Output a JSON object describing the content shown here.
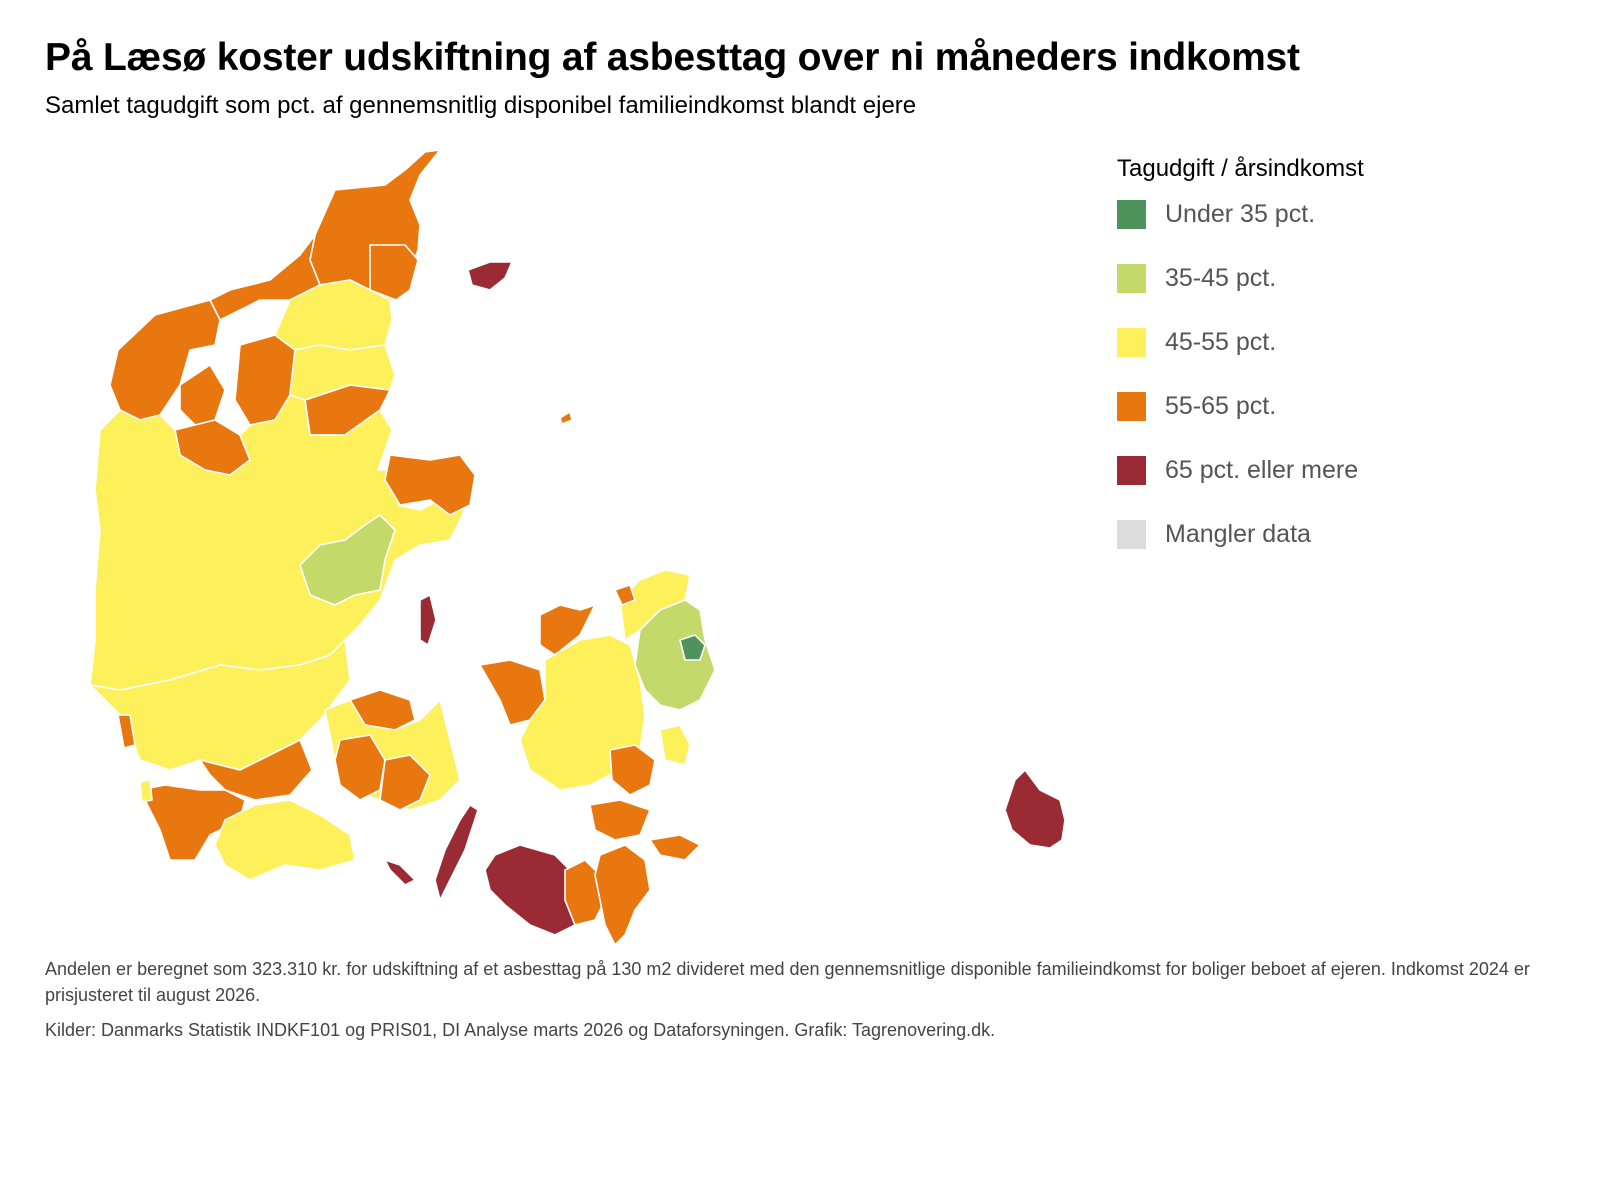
{
  "title": "På Læsø koster udskiftning af asbesttag over ni måneders indkomst",
  "subtitle": "Samlet tagudgift som pct. af gennemsnitlig disponibel familieindkomst blandt ejere",
  "legend": {
    "title": "Tagudgift / årsindkomst",
    "items": [
      {
        "label": "Under 35 pct.",
        "color": "#4f935c"
      },
      {
        "label": "35-45 pct.",
        "color": "#c3da6a"
      },
      {
        "label": "45-55 pct.",
        "color": "#fdf05a"
      },
      {
        "label": "55-65 pct.",
        "color": "#e8770f"
      },
      {
        "label": "65 pct. eller mere",
        "color": "#9a2b34"
      },
      {
        "label": "Mangler data",
        "color": "#dcdcdc"
      }
    ]
  },
  "note": "Andelen er beregnet som 323.310 kr. for udskiftning af et asbesttag på 130 m2 divideret med den gennemsnitlige disponible familieindkomst for boliger beboet af ejeren. Indkomst 2024 er prisjusteret til august 2026.",
  "source": "Kilder: Danmarks Statistik INDKF101 og PRIS01, DI Analyse marts 2026 og Dataforsyningen. Grafik: Tagrenovering.dk."
}
